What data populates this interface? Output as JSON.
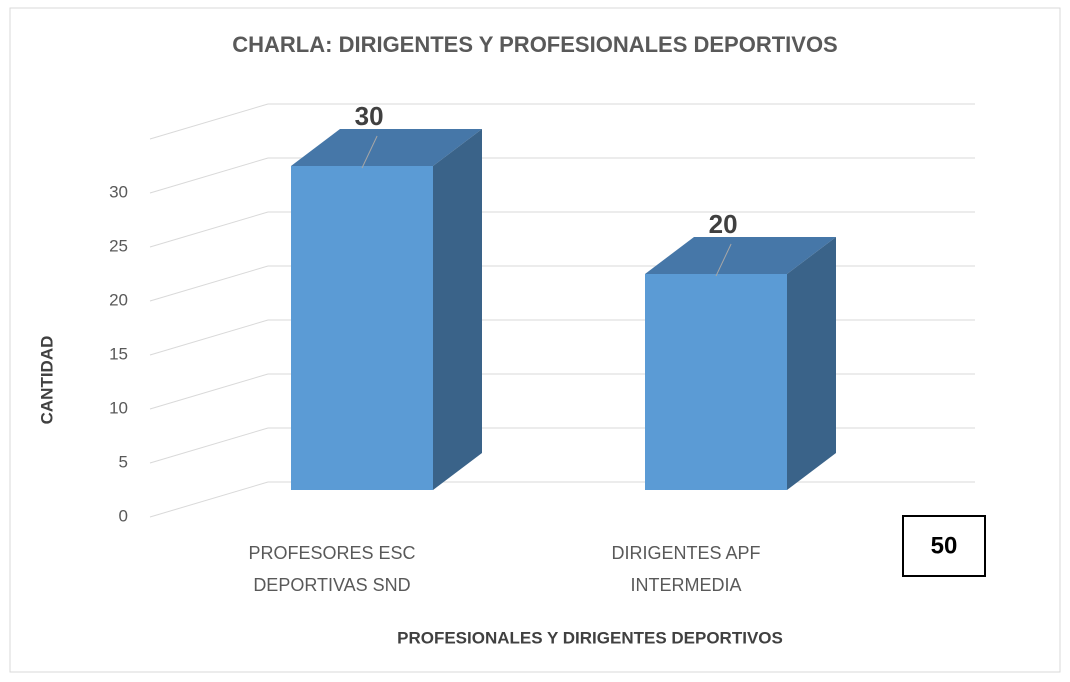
{
  "chart_data": {
    "type": "bar3d",
    "title": "CHARLA: DIRIGENTES Y PROFESIONALES DEPORTIVOS",
    "categories": [
      [
        "PROFESORES ESC",
        "DEPORTIVAS  SND"
      ],
      [
        "DIRIGENTES APF",
        "INTERMEDIA"
      ]
    ],
    "values": [
      30,
      20
    ],
    "color": "#5b9bd5",
    "ylim": [
      0,
      35
    ],
    "yticks": [
      0,
      5,
      10,
      15,
      20,
      25,
      30
    ],
    "grid": true,
    "ylabel": "CANTIDAD",
    "xlabel": "PROFESIONALES Y DIRIGENTES DEPORTIVOS",
    "annotation": "50"
  }
}
